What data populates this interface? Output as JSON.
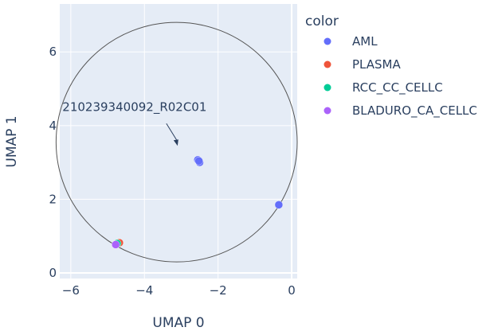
{
  "chart_data": {
    "type": "scatter",
    "xlabel": "UMAP 0",
    "ylabel": "UMAP 1",
    "xlim": [
      -6.3,
      0.15
    ],
    "ylim": [
      -0.15,
      7.3
    ],
    "xticks": [
      -6,
      -4,
      -2,
      0
    ],
    "yticks": [
      0,
      2,
      4,
      6
    ],
    "xtick_labels": [
      "−6",
      "−4",
      "−2",
      "0"
    ],
    "ytick_labels": [
      "0",
      "2",
      "4",
      "6"
    ],
    "grid": true,
    "plot_bg": "#e5ecf6",
    "legend": {
      "title": "color",
      "position": "right"
    },
    "series": [
      {
        "name": "AML",
        "color": "#636efa",
        "x": [
          -2.55,
          -2.5,
          -2.52,
          -0.35
        ],
        "y": [
          3.07,
          3.0,
          3.04,
          1.85
        ]
      },
      {
        "name": "PLASMA",
        "color": "#ef553b",
        "x": [
          -4.68
        ],
        "y": [
          0.82
        ]
      },
      {
        "name": "RCC_CC_CELLC",
        "color": "#00cc96",
        "x": [
          -4.74
        ],
        "y": [
          0.8
        ]
      },
      {
        "name": "BLADURO_CA_CELLC",
        "color": "#ab63fa",
        "x": [
          -4.78
        ],
        "y": [
          0.77
        ]
      }
    ],
    "shapes": [
      {
        "type": "circle",
        "x0": -6.4,
        "x1": 0.15,
        "y0": 0.3,
        "y1": 6.8,
        "color": "#555555"
      }
    ],
    "annotations": [
      {
        "text": "210239340092_R02C01",
        "x": -3.1,
        "y": 3.45,
        "arrow": true
      }
    ]
  }
}
